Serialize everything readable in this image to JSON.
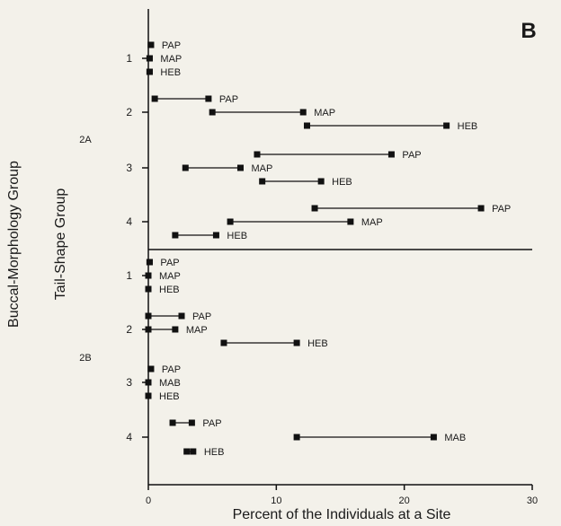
{
  "chart_data": {
    "type": "range-dot",
    "panel_label": "B",
    "xlabel": "Percent of the Individuals at a Site",
    "ylabel_outer": "Buccal-Morphology Group",
    "ylabel_inner": "Tail-Shape Group",
    "xlim": [
      0,
      30
    ],
    "xticks": [
      0,
      10,
      20,
      30
    ],
    "groups": [
      {
        "name": "2A",
        "subgroups": [
          {
            "name": "1",
            "series": [
              {
                "label": "PAP",
                "min": 0.2,
                "max": 0.2
              },
              {
                "label": "MAP",
                "min": 0.1,
                "max": 0.1
              },
              {
                "label": "HEB",
                "min": 0.1,
                "max": 0.1
              }
            ]
          },
          {
            "name": "2",
            "series": [
              {
                "label": "PAP",
                "min": 0.5,
                "max": 4.7
              },
              {
                "label": "MAP",
                "min": 5.0,
                "max": 12.1
              },
              {
                "label": "HEB",
                "min": 12.4,
                "max": 23.3
              }
            ]
          },
          {
            "name": "3",
            "series": [
              {
                "label": "PAP",
                "min": 8.5,
                "max": 19.0
              },
              {
                "label": "MAP",
                "min": 2.9,
                "max": 7.2
              },
              {
                "label": "HEB",
                "min": 8.9,
                "max": 13.5
              }
            ]
          },
          {
            "name": "4",
            "series": [
              {
                "label": "PAP",
                "min": 13.0,
                "max": 26.0
              },
              {
                "label": "MAP",
                "min": 6.4,
                "max": 15.8
              },
              {
                "label": "HEB",
                "min": 2.1,
                "max": 5.3
              }
            ]
          }
        ]
      },
      {
        "name": "2B",
        "subgroups": [
          {
            "name": "1",
            "series": [
              {
                "label": "PAP",
                "min": 0.1,
                "max": 0.1
              },
              {
                "label": "MAP",
                "min": 0.0,
                "max": 0.0
              },
              {
                "label": "HEB",
                "min": 0.0,
                "max": 0.0
              }
            ]
          },
          {
            "name": "2",
            "series": [
              {
                "label": "PAP",
                "min": 0.0,
                "max": 2.6
              },
              {
                "label": "MAP",
                "min": 0.0,
                "max": 2.1
              },
              {
                "label": "HEB",
                "min": 5.9,
                "max": 11.6
              }
            ]
          },
          {
            "name": "3",
            "series": [
              {
                "label": "PAP",
                "min": 0.2,
                "max": 0.2
              },
              {
                "label": "MAB",
                "min": 0.0,
                "max": 0.0
              },
              {
                "label": "HEB",
                "min": 0.0,
                "max": 0.0
              }
            ]
          },
          {
            "name": "4",
            "series": [
              {
                "label": "PAP",
                "min": 1.9,
                "max": 3.4
              },
              {
                "label": "MAB",
                "min": 11.6,
                "max": 22.3
              },
              {
                "label": "HEB",
                "min": 3.0,
                "max": 3.5
              }
            ]
          }
        ]
      }
    ]
  }
}
